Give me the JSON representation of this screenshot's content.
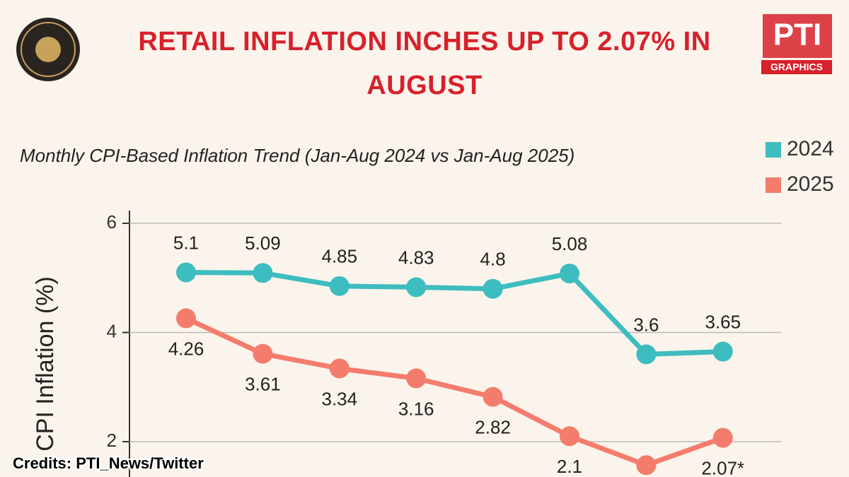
{
  "chart_data": {
    "type": "line",
    "title": "RETAIL INFLATION INCHES UP TO 2.07% IN AUGUST",
    "subtitle": "Monthly CPI-Based Inflation Trend (Jan-Aug 2024 vs Jan-Aug 2025)",
    "y_label": "CPI Inflation (%)",
    "categories": [
      null,
      null,
      null,
      null,
      null,
      null,
      null,
      null
    ],
    "series": [
      {
        "name": "2024",
        "color": "#3dbdbf",
        "values": [
          5.1,
          5.09,
          4.85,
          4.83,
          4.8,
          5.08,
          3.6,
          3.65
        ]
      },
      {
        "name": "2025",
        "color": "#f47c6c",
        "values": [
          4.26,
          3.61,
          3.34,
          3.16,
          2.82,
          2.1,
          1.57,
          2.07
        ],
        "value_labels": [
          "4.26",
          "3.61",
          "3.34",
          "3.16",
          "2.82",
          "2.1",
          null,
          "2.07*"
        ]
      }
    ],
    "ylim": [
      1.35,
      6.2
    ],
    "yticks": [
      2,
      4,
      6
    ],
    "grid": true,
    "legend": "top-right",
    "logo_text": "PTI",
    "logo_subtext": "GRAPHICS",
    "credits": "Credits: PTI_News/Twitter"
  }
}
